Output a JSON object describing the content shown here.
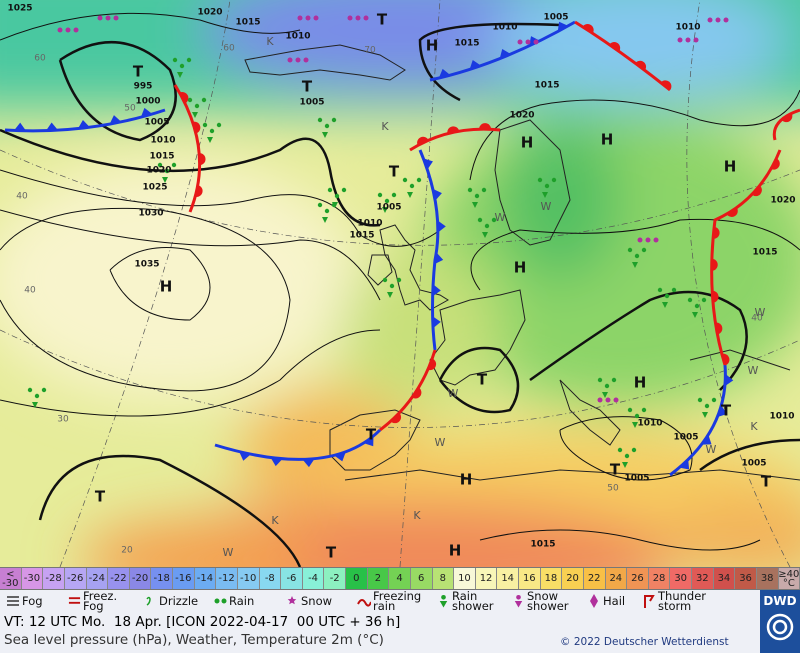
{
  "map": {
    "centers": [
      "H",
      "T",
      "K",
      "T",
      "T",
      "H",
      "H",
      "H",
      "H",
      "H",
      "T",
      "T",
      "H",
      "T",
      "T",
      "T",
      "T",
      "H",
      "H",
      "T",
      "T",
      "W",
      "W",
      "K",
      "K",
      "W",
      "K",
      "W",
      "W",
      "W",
      "W",
      "W",
      "K"
    ],
    "isobar_labels": [
      "1025",
      "1020",
      "1015",
      "1010",
      "1005",
      "1005",
      "1010",
      "1015",
      "1010",
      "1020",
      "1015",
      "995",
      "1000",
      "1005",
      "1010",
      "1015",
      "1020",
      "1025",
      "1030",
      "1035",
      "1010",
      "1015",
      "1005",
      "1020",
      "1015",
      "1010",
      "1005",
      "1010",
      "1005",
      "1005",
      "1015"
    ],
    "temperature_labels": [
      "60",
      "70",
      "50",
      "60",
      "40",
      "40",
      "40",
      "30",
      "20",
      "50"
    ]
  },
  "color_scale": {
    "labels": [
      "< -30",
      "-30",
      "-28",
      "-26",
      "-24",
      "-22",
      "-20",
      "-18",
      "-16",
      "-14",
      "-12",
      "-10",
      "-8",
      "-6",
      "-4",
      "-2",
      "0",
      "2",
      "4",
      "6",
      "8",
      "10",
      "12",
      "14",
      "16",
      "18",
      "20",
      "22",
      "24",
      "26",
      "28",
      "30",
      "32",
      "34",
      "36",
      "38",
      "≥40 °C"
    ],
    "colors": [
      "#c77fd2",
      "#d796e6",
      "#c6a2f2",
      "#b6a6f4",
      "#a6a2f2",
      "#9892ee",
      "#8a88e6",
      "#7690f0",
      "#6a9cf2",
      "#6cacf2",
      "#7abcf2",
      "#86caf2",
      "#88d8f0",
      "#88e4e4",
      "#88f0d8",
      "#8cf0c0",
      "#28c048",
      "#48c848",
      "#74d254",
      "#98da64",
      "#b8e274",
      "#f8f8d8",
      "#f8f6b8",
      "#f8f0a2",
      "#f8e886",
      "#f8de66",
      "#f8d052",
      "#f8c046",
      "#f2a848",
      "#f09454",
      "#f08264",
      "#f06a66",
      "#e05a56",
      "#d0504c",
      "#c05a48",
      "#a8725e",
      "#c8aaaa"
    ]
  },
  "weather_legend": [
    "Fog",
    "Freez. Fog",
    "Drizzle",
    "Rain",
    "Snow",
    "Freezing rain",
    "Rain shower",
    "Snow shower",
    "Hail",
    "Thunder storm"
  ],
  "valid_time": "VT: 12 UTC Mo.  18 Apr. [ICON 2022-04-17  00 UTC + 36 h]",
  "subtitle": "Sea level pressure (hPa), Weather, Temperature 2m (°C)",
  "copyright": "© 2022 Deutscher Wetterdienst",
  "logo": "DWD"
}
